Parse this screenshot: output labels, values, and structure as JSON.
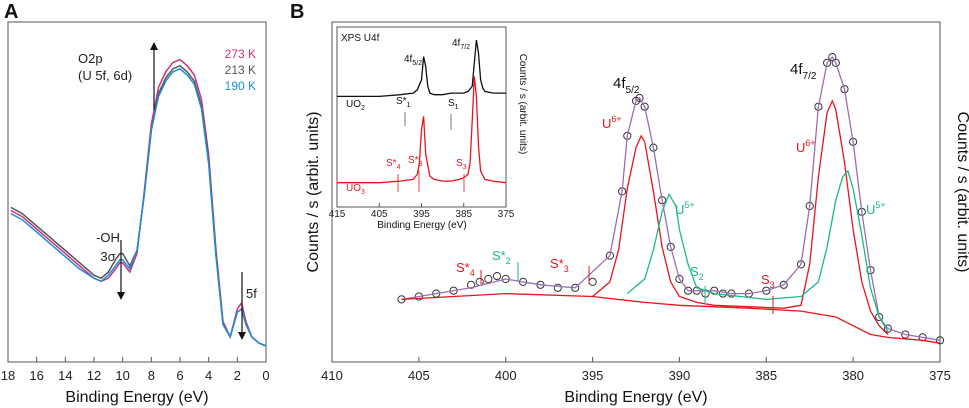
{
  "chart_data": [
    {
      "panel": "A",
      "type": "line",
      "title": "",
      "xlabel": "Binding Energy (eV)",
      "ylabel": "",
      "xlim": [
        18,
        0
      ],
      "ylim": [
        0,
        100
      ],
      "x_ticks": [
        "18",
        "16",
        "14",
        "12",
        "10",
        "8",
        "6",
        "4",
        "2",
        "0"
      ],
      "x": [
        17.8,
        17,
        16,
        15,
        14,
        13,
        12,
        11.5,
        11,
        10.5,
        10.2,
        10,
        9.5,
        9,
        8.5,
        8,
        7.5,
        7,
        6.5,
        6,
        5.5,
        5,
        4.5,
        4,
        3.5,
        3,
        2.5,
        2,
        1.7,
        1.4,
        1,
        0.5,
        0
      ],
      "series": [
        {
          "name": "273 K",
          "color": "#d0307f",
          "values": [
            44,
            42,
            38,
            34,
            30,
            26,
            22,
            21,
            22,
            25,
            27,
            27,
            24,
            30,
            50,
            72,
            84,
            89,
            92,
            93,
            91,
            88,
            80,
            62,
            32,
            8,
            3,
            12,
            14,
            8,
            3,
            1,
            0
          ]
        },
        {
          "name": "213 K",
          "color": "#555555",
          "values": [
            45,
            43,
            39,
            35,
            31,
            27,
            23,
            22,
            24,
            28,
            30,
            30,
            26,
            31,
            49,
            70,
            82,
            87,
            90,
            91,
            89,
            86,
            78,
            60,
            30,
            7,
            3,
            11,
            12,
            7,
            3,
            1,
            0
          ]
        },
        {
          "name": "190 K",
          "color": "#1b8fd1",
          "values": [
            43,
            41,
            37,
            33,
            29,
            25,
            22,
            21,
            23,
            26,
            28,
            28,
            25,
            31,
            49,
            70,
            81,
            86,
            89,
            90,
            88,
            85,
            77,
            59,
            30,
            7,
            3,
            11,
            12,
            7,
            3,
            1,
            0
          ]
        }
      ],
      "legend": [
        "273 K",
        "213 K",
        "190 K"
      ],
      "annotations": {
        "o2p_line1": "O2p",
        "o2p_line2": "(U 5f, 6d)",
        "oh_line1": "-OH",
        "oh_line2": "3σ",
        "f5": "5f"
      }
    },
    {
      "panel": "B",
      "type": "line",
      "title": "",
      "xlabel": "Binding Energy (eV)",
      "ylabel": "Counts / s (arbit. units)",
      "xlim": [
        410,
        375
      ],
      "ylim": [
        0,
        100
      ],
      "x_ticks": [
        "410",
        "405",
        "400",
        "395",
        "390",
        "385",
        "380",
        "375"
      ],
      "series": [
        {
          "name": "measured",
          "color": "#333333",
          "style": "circles",
          "x": [
            406,
            405,
            404,
            403,
            402,
            401.5,
            401,
            400.5,
            400,
            399,
            398,
            397,
            396,
            395,
            394,
            393.3,
            393,
            392.5,
            392.3,
            392,
            391.5,
            391,
            390.5,
            390,
            389.5,
            389,
            388.5,
            388,
            387.5,
            387,
            386,
            385,
            384,
            383,
            382.5,
            382,
            381.5,
            381.2,
            381,
            380.5,
            380,
            379.5,
            379,
            378.5,
            378,
            377,
            376,
            375
          ],
          "values": [
            18,
            19,
            20,
            21,
            23,
            24,
            25,
            26,
            25,
            24,
            23,
            22,
            22,
            24,
            33,
            55,
            74,
            86,
            87,
            84,
            70,
            52,
            36,
            25,
            21,
            21,
            20,
            21,
            20,
            20,
            20,
            21,
            23,
            30,
            50,
            84,
            99,
            101,
            99,
            90,
            72,
            48,
            28,
            12,
            8,
            6,
            5,
            4
          ]
        },
        {
          "name": "fit envelope",
          "color": "#9a6fb0",
          "x": [
            406,
            404,
            402,
            400,
            398,
            396,
            394,
            393.3,
            393,
            392.5,
            392.3,
            392,
            391.5,
            391,
            390.5,
            390,
            389.5,
            389,
            388,
            387,
            386,
            385,
            384,
            383,
            382.5,
            382,
            381.5,
            381.2,
            381,
            380.5,
            380,
            379.5,
            379,
            378.5,
            378,
            377,
            375
          ],
          "values": [
            18,
            20,
            22,
            25,
            23,
            22,
            33,
            55,
            74,
            86,
            87,
            84,
            70,
            52,
            36,
            25,
            21,
            21,
            21,
            20,
            20,
            21,
            23,
            30,
            50,
            84,
            99,
            101,
            99,
            90,
            72,
            48,
            28,
            12,
            8,
            6,
            4
          ]
        },
        {
          "name": "U6+",
          "color": "#e8141c",
          "x": [
            395,
            394,
            393.5,
            393,
            392.5,
            392.2,
            392,
            391.5,
            391,
            390.5,
            390,
            389,
            388,
            384,
            383,
            382.5,
            382,
            381.5,
            381.2,
            381,
            380.5,
            380,
            379.5,
            379,
            378.5,
            378
          ],
          "values": [
            19,
            24,
            35,
            56,
            70,
            74,
            72,
            55,
            36,
            24,
            19,
            17,
            16,
            15,
            16,
            30,
            60,
            82,
            86,
            83,
            65,
            42,
            24,
            14,
            9,
            6
          ]
        },
        {
          "name": "U5+",
          "color": "#1aba82",
          "x": [
            393,
            392,
            391.5,
            391,
            390.6,
            390.2,
            390,
            389.5,
            389,
            388,
            385,
            383,
            382,
            381.5,
            381,
            380.6,
            380.3,
            380,
            379.5,
            379,
            378.5,
            378
          ],
          "values": [
            20,
            25,
            35,
            48,
            54,
            50,
            42,
            30,
            22,
            20,
            18,
            19,
            24,
            36,
            52,
            60,
            62,
            56,
            40,
            22,
            12,
            7
          ]
        },
        {
          "name": "background",
          "color": "#e8141c",
          "x": [
            406,
            400,
            395,
            392,
            390,
            386,
            383,
            381,
            380,
            379,
            378,
            376,
            375
          ],
          "values": [
            18,
            20,
            19,
            17,
            16,
            15,
            14,
            12,
            9,
            6,
            5,
            4,
            3
          ]
        }
      ],
      "annotations": {
        "peak_4f52_base": "4f",
        "peak_4f52_sub": "5/2",
        "peak_4f72_base": "4f",
        "peak_4f72_sub": "7/2",
        "u6_left_base": "U",
        "u6_left_sup": "6+",
        "u6_right_base": "U",
        "u6_right_sup": "6+",
        "u5_left_base": "U",
        "u5_left_sup": "5+",
        "u5_right_base": "U",
        "u5_right_sup": "5+",
        "s4_base": "S*",
        "s4_sub": "4",
        "s2star_base": "S*",
        "s2star_sub": "2",
        "s3star_base": "S*",
        "s3star_sub": "3",
        "s2_base": "S",
        "s2_sub": "2",
        "s3_base": "S",
        "s3_sub": "3"
      },
      "inset": {
        "title": "XPS U4f",
        "xlabel": "Binding Energy (eV)",
        "ylabel": "Counts / s (arbit. units)",
        "xlim": [
          415,
          375
        ],
        "x_ticks": [
          "415",
          "405",
          "395",
          "385",
          "375"
        ],
        "series": [
          {
            "name": "UO₂",
            "color": "#111111",
            "x": [
              415,
              405,
              400,
              397,
              396,
              395,
              394.5,
              394,
              393.5,
              393,
              392,
              391,
              390,
              388,
              386,
              385,
              384,
              383,
              382.5,
              382,
              381.5,
              381,
              380.5,
              380,
              378,
              375
            ],
            "values": [
              60,
              60,
              61,
              62,
              64,
              70,
              84,
              78,
              66,
              62,
              61,
              61,
              61,
              62,
              62,
              62,
              63,
              66,
              80,
              94,
              86,
              70,
              65,
              63,
              62,
              62
            ]
          },
          {
            "name": "UO₃",
            "color": "#e8141c",
            "x": [
              415,
              405,
              400,
              397,
              396,
              395.5,
              395,
              394.5,
              394,
              393,
              392,
              390,
              388,
              386,
              385,
              384,
              383.5,
              383,
              382.5,
              382,
              381.5,
              381,
              380,
              378,
              375
            ],
            "values": [
              8,
              8,
              9,
              10,
              13,
              20,
              40,
              48,
              25,
              12,
              10,
              9,
              9,
              10,
              11,
              13,
              20,
              45,
              72,
              60,
              30,
              15,
              10,
              9,
              8
            ]
          }
        ],
        "labels": {
          "uo2_base": "UO",
          "uo2_sub": "2",
          "uo3_base": "UO",
          "uo3_sub": "3",
          "f52_base": "4f",
          "f52_sub": "5/2",
          "f72_base": "4f",
          "f72_sub": "7/2",
          "s1star_base": "S*",
          "s1star_sub": "1",
          "s1_base": "S",
          "s1_sub": "1",
          "s4_base": "S*",
          "s4_sub": "4",
          "s3star_base": "S*",
          "s3star_sub": "3",
          "s3_base": "S",
          "s3_sub": "3"
        }
      }
    }
  ],
  "panel_labels": {
    "a": "A",
    "b": "B"
  }
}
